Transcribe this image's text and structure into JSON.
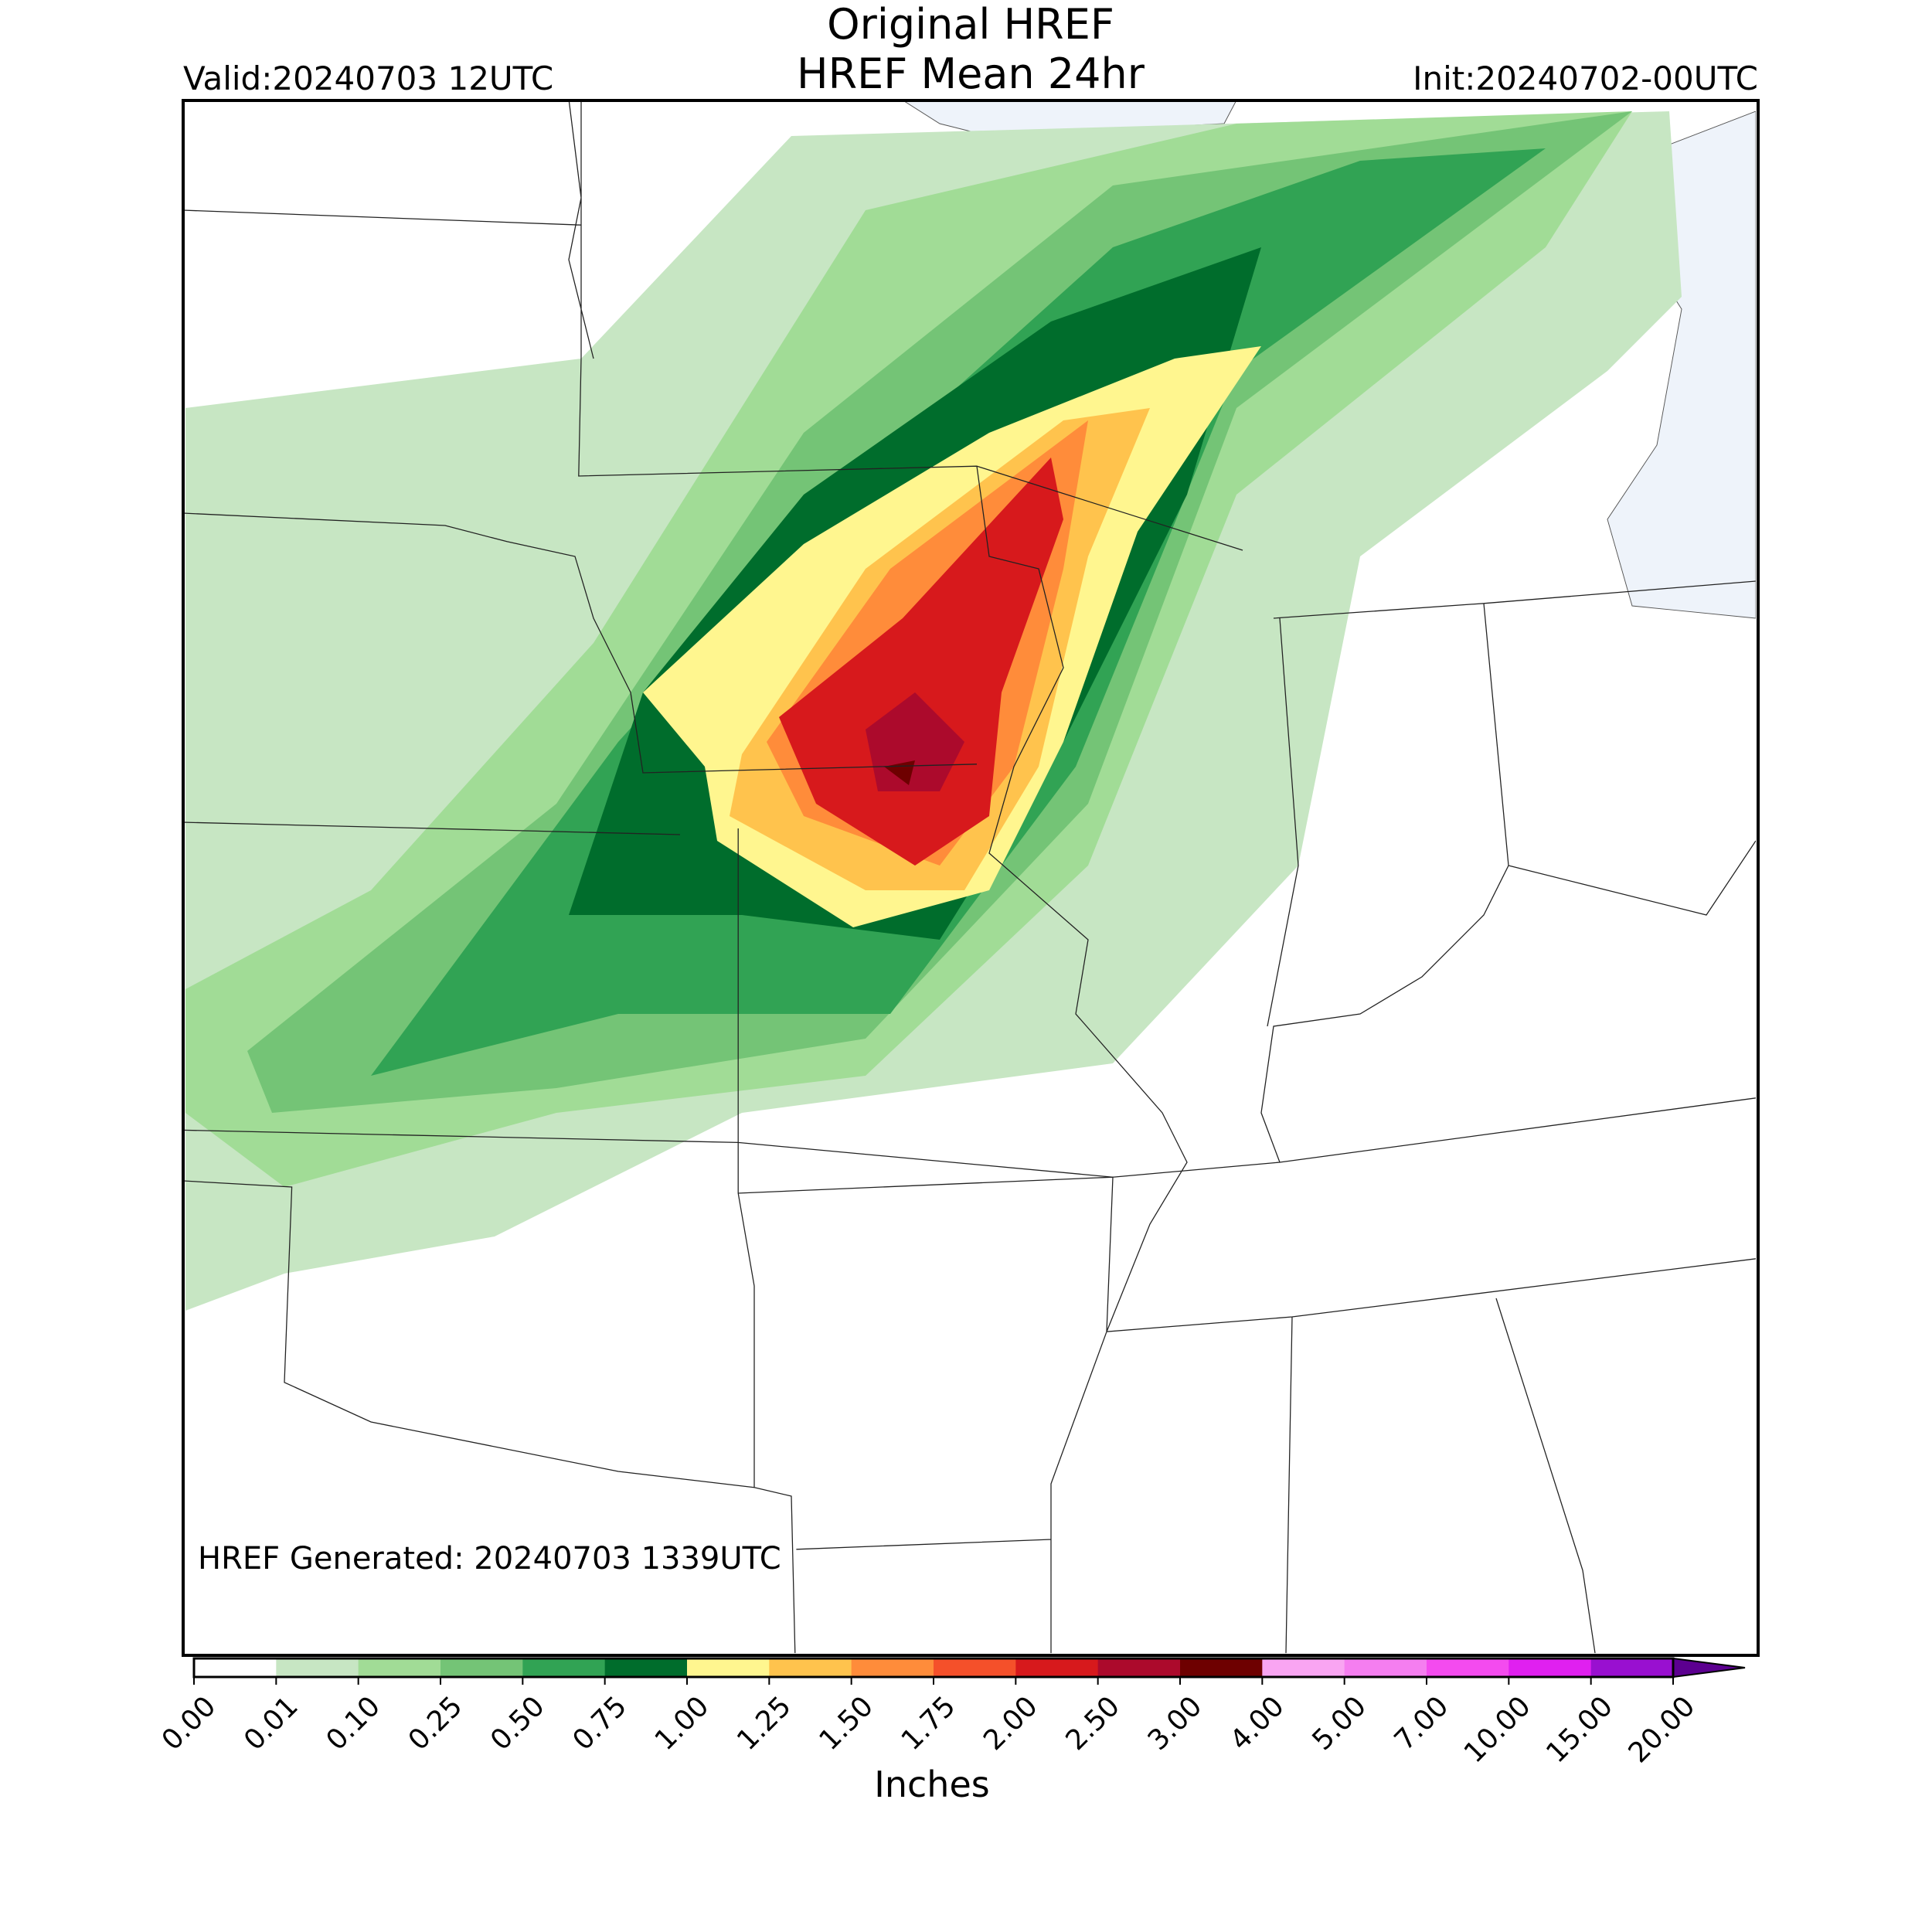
{
  "title": [
    "Original HREF",
    "HREF Mean 24hr"
  ],
  "valid": "Valid:20240703 12UTC",
  "init": "Init:20240702-00UTC",
  "generated": "HREF Generated: 20240703 1339UTC",
  "colorbar": {
    "label": "Inches",
    "ticks": [
      {
        "value": 0,
        "label": "0.00"
      },
      {
        "value": 0.01,
        "label": "0.01"
      },
      {
        "value": 0.1,
        "label": "0.10"
      },
      {
        "value": 0.25,
        "label": "0.25"
      },
      {
        "value": 0.5,
        "label": "0.50"
      },
      {
        "value": 0.75,
        "label": "0.75"
      },
      {
        "value": 1,
        "label": "1.00"
      },
      {
        "value": 1.25,
        "label": "1.25"
      },
      {
        "value": 1.5,
        "label": "1.50"
      },
      {
        "value": 1.75,
        "label": "1.75"
      },
      {
        "value": 2,
        "label": "2.00"
      },
      {
        "value": 2.5,
        "label": "2.50"
      },
      {
        "value": 3,
        "label": "3.00"
      },
      {
        "value": 4,
        "label": "4.00"
      },
      {
        "value": 5,
        "label": "5.00"
      },
      {
        "value": 7,
        "label": "7.00"
      },
      {
        "value": 10,
        "label": "10.00"
      },
      {
        "value": 15,
        "label": "15.00"
      },
      {
        "value": 20,
        "label": "20.00"
      }
    ],
    "colors": [
      "#ffffff",
      "#c7e6c3",
      "#a1dc96",
      "#74c476",
      "#31a354",
      "#006d2c",
      "#fff68f",
      "#ffc34d",
      "#ff8c3a",
      "#f5502a",
      "#d7191c",
      "#ac0a2c",
      "#6e0000",
      "#f9a5f2",
      "#f57ef0",
      "#f44bef",
      "#e020f0",
      "#9910d0"
    ],
    "extend_color": "#5c0090"
  }
}
